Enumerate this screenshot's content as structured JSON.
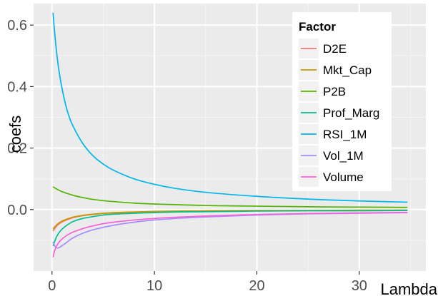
{
  "chart_data": {
    "type": "line",
    "xlabel": "Lambda",
    "ylabel": "coefs",
    "xlim": [
      -1.8,
      36.5
    ],
    "ylim": [
      -0.2,
      0.67
    ],
    "x_ticks": [
      0,
      10,
      20,
      30
    ],
    "y_ticks": [
      0.0,
      0.2,
      0.4,
      0.6
    ],
    "x_tick_labels": [
      "0",
      "10",
      "20",
      "30"
    ],
    "y_tick_labels": [
      "0.0",
      "0.2",
      "0.4",
      "0.6"
    ],
    "grid": true,
    "legend_position": "top-right",
    "legend": {
      "title": "Factor",
      "entries": [
        "D2E",
        "Mkt_Cap",
        "P2B",
        "Prof_Marg",
        "RSI_1M",
        "Vol_1M",
        "Volume"
      ]
    },
    "series": [
      {
        "name": "D2E",
        "color": "#F8766D",
        "x": [
          0.1,
          0.5,
          1,
          2,
          3,
          4,
          5,
          6,
          8,
          10,
          12,
          15,
          20,
          25,
          30,
          34.7
        ],
        "y": [
          -0.07,
          -0.052,
          -0.04,
          -0.027,
          -0.02,
          -0.016,
          -0.013,
          -0.011,
          -0.009,
          -0.007,
          -0.006,
          -0.005,
          -0.004,
          -0.003,
          -0.003,
          -0.002
        ]
      },
      {
        "name": "Mkt_Cap",
        "color": "#C49A00",
        "x": [
          0.1,
          0.5,
          1,
          2,
          3,
          4,
          5,
          6,
          8,
          10,
          12,
          15,
          20,
          25,
          30,
          34.7
        ],
        "y": [
          -0.063,
          -0.048,
          -0.037,
          -0.025,
          -0.019,
          -0.015,
          -0.012,
          -0.01,
          -0.008,
          -0.006,
          -0.005,
          -0.004,
          -0.003,
          -0.003,
          -0.002,
          -0.002
        ]
      },
      {
        "name": "P2B",
        "color": "#53B400",
        "x": [
          0.1,
          0.5,
          1,
          2,
          3,
          4,
          5,
          6,
          8,
          10,
          12,
          15,
          20,
          25,
          30,
          34.7
        ],
        "y": [
          0.074,
          0.066,
          0.058,
          0.047,
          0.039,
          0.033,
          0.029,
          0.026,
          0.021,
          0.018,
          0.016,
          0.013,
          0.011,
          0.009,
          0.008,
          0.007
        ]
      },
      {
        "name": "Prof_Marg",
        "color": "#00C094",
        "x": [
          0.1,
          0.5,
          1,
          2,
          3,
          4,
          5,
          6,
          8,
          10,
          12,
          15,
          20,
          25,
          30,
          34.7
        ],
        "y": [
          -0.118,
          -0.085,
          -0.063,
          -0.04,
          -0.029,
          -0.023,
          -0.018,
          -0.015,
          -0.012,
          -0.01,
          -0.008,
          -0.007,
          -0.005,
          -0.004,
          -0.004,
          -0.003
        ]
      },
      {
        "name": "RSI_1M",
        "color": "#00B6EB",
        "x": [
          0.1,
          0.3,
          0.6,
          1,
          1.5,
          2,
          3,
          4,
          5,
          6,
          8,
          10,
          12,
          15,
          20,
          25,
          30,
          34.7
        ],
        "y": [
          0.64,
          0.56,
          0.47,
          0.39,
          0.32,
          0.275,
          0.215,
          0.175,
          0.148,
          0.128,
          0.1,
          0.082,
          0.069,
          0.056,
          0.043,
          0.034,
          0.028,
          0.024
        ]
      },
      {
        "name": "Vol_1M",
        "color": "#A58AFF",
        "x": [
          0.1,
          0.3,
          0.6,
          1,
          1.5,
          2,
          3,
          4,
          5,
          6,
          8,
          10,
          12,
          15,
          20,
          25,
          30,
          34.7
        ],
        "y": [
          -0.105,
          -0.12,
          -0.125,
          -0.117,
          -0.105,
          -0.093,
          -0.077,
          -0.066,
          -0.058,
          -0.051,
          -0.041,
          -0.034,
          -0.029,
          -0.024,
          -0.018,
          -0.014,
          -0.012,
          -0.01
        ]
      },
      {
        "name": "Volume",
        "color": "#FB61D7",
        "x": [
          0.1,
          0.3,
          0.6,
          1,
          1.5,
          2,
          3,
          4,
          5,
          6,
          8,
          10,
          12,
          15,
          20,
          25,
          30,
          34.7
        ],
        "y": [
          -0.155,
          -0.13,
          -0.11,
          -0.095,
          -0.083,
          -0.074,
          -0.062,
          -0.053,
          -0.046,
          -0.041,
          -0.034,
          -0.029,
          -0.025,
          -0.021,
          -0.016,
          -0.013,
          -0.011,
          -0.009
        ]
      }
    ]
  }
}
